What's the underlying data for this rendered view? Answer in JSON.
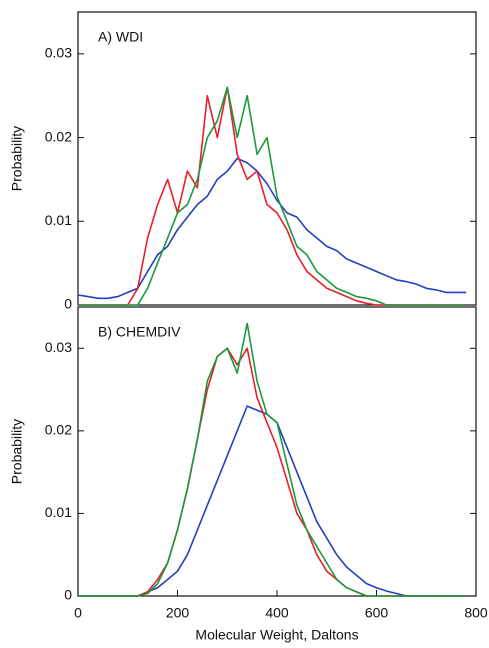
{
  "chart_data": [
    {
      "type": "line",
      "title": "A) WDI",
      "ylabel": "Probability",
      "x": [
        0,
        20,
        40,
        60,
        80,
        100,
        120,
        140,
        160,
        180,
        200,
        220,
        240,
        260,
        280,
        300,
        320,
        340,
        360,
        380,
        400,
        420,
        440,
        460,
        480,
        500,
        520,
        540,
        560,
        580,
        600,
        620,
        640,
        660,
        680,
        700,
        720,
        740,
        760,
        780
      ],
      "xlim": [
        0,
        800
      ],
      "ylim": [
        0,
        0.035
      ],
      "yticks": [
        0,
        0.01,
        0.02,
        0.03
      ],
      "series": [
        {
          "color": "#2440c0",
          "values": [
            0.0012,
            0.001,
            0.0008,
            0.0008,
            0.001,
            0.0015,
            0.002,
            0.004,
            0.006,
            0.007,
            0.009,
            0.0105,
            0.012,
            0.013,
            0.015,
            0.016,
            0.0175,
            0.017,
            0.016,
            0.0145,
            0.0125,
            0.011,
            0.0105,
            0.009,
            0.008,
            0.007,
            0.0065,
            0.0055,
            0.005,
            0.0045,
            0.004,
            0.0035,
            0.003,
            0.0028,
            0.0025,
            0.002,
            0.0018,
            0.0015,
            0.0015,
            0.0015
          ]
        },
        {
          "color": "#e8202a",
          "values": [
            0,
            0,
            0,
            0,
            0,
            0,
            0.002,
            0.008,
            0.012,
            0.015,
            0.011,
            0.016,
            0.014,
            0.025,
            0.02,
            0.026,
            0.018,
            0.015,
            0.016,
            0.012,
            0.011,
            0.009,
            0.006,
            0.004,
            0.003,
            0.002,
            0.0015,
            0.001,
            0.0005,
            0.0002,
            0,
            0,
            0,
            0,
            0,
            0,
            0,
            0,
            0,
            0
          ]
        },
        {
          "color": "#1a9a3c",
          "values": [
            0,
            0,
            0,
            0,
            0,
            0,
            0,
            0.002,
            0.005,
            0.008,
            0.011,
            0.012,
            0.015,
            0.02,
            0.022,
            0.026,
            0.02,
            0.025,
            0.018,
            0.02,
            0.013,
            0.01,
            0.007,
            0.006,
            0.004,
            0.003,
            0.002,
            0.0015,
            0.001,
            0.0008,
            0.0005,
            0,
            0,
            0,
            0,
            0,
            0,
            0,
            0,
            0
          ]
        }
      ]
    },
    {
      "type": "line",
      "title": "B) CHEMDIV",
      "ylabel": "Probability",
      "xlabel": "Molecular Weight, Daltons",
      "x": [
        0,
        20,
        40,
        60,
        80,
        100,
        120,
        140,
        160,
        180,
        200,
        220,
        240,
        260,
        280,
        300,
        320,
        340,
        360,
        380,
        400,
        420,
        440,
        460,
        480,
        500,
        520,
        540,
        560,
        580,
        600,
        620,
        640,
        660,
        680,
        700,
        720,
        740,
        760,
        780
      ],
      "xlim": [
        0,
        800
      ],
      "xticks": [
        0,
        200,
        400,
        600,
        800
      ],
      "ylim": [
        0,
        0.035
      ],
      "yticks": [
        0,
        0.01,
        0.02,
        0.03
      ],
      "series": [
        {
          "color": "#2440c0",
          "values": [
            0,
            0,
            0,
            0,
            0,
            0,
            0,
            0.0005,
            0.001,
            0.002,
            0.003,
            0.005,
            0.008,
            0.011,
            0.014,
            0.017,
            0.02,
            0.023,
            0.0225,
            0.022,
            0.021,
            0.018,
            0.015,
            0.012,
            0.009,
            0.007,
            0.005,
            0.0035,
            0.0025,
            0.0015,
            0.001,
            0.0006,
            0.0003,
            0,
            0,
            0,
            0,
            0,
            0,
            0
          ]
        },
        {
          "color": "#e8202a",
          "values": [
            0,
            0,
            0,
            0,
            0,
            0,
            0,
            0.0005,
            0.002,
            0.004,
            0.008,
            0.013,
            0.019,
            0.025,
            0.029,
            0.03,
            0.028,
            0.03,
            0.024,
            0.021,
            0.018,
            0.014,
            0.01,
            0.008,
            0.005,
            0.003,
            0.002,
            0.001,
            0.0005,
            0,
            0,
            0,
            0,
            0,
            0,
            0,
            0,
            0,
            0,
            0
          ]
        },
        {
          "color": "#1a9a3c",
          "values": [
            0,
            0,
            0,
            0,
            0,
            0,
            0,
            0.0003,
            0.0015,
            0.004,
            0.008,
            0.013,
            0.019,
            0.026,
            0.029,
            0.03,
            0.027,
            0.033,
            0.026,
            0.022,
            0.021,
            0.016,
            0.011,
            0.008,
            0.006,
            0.004,
            0.002,
            0.001,
            0.0005,
            0,
            0,
            0,
            0,
            0,
            0,
            0,
            0,
            0,
            0,
            0
          ]
        }
      ]
    }
  ]
}
